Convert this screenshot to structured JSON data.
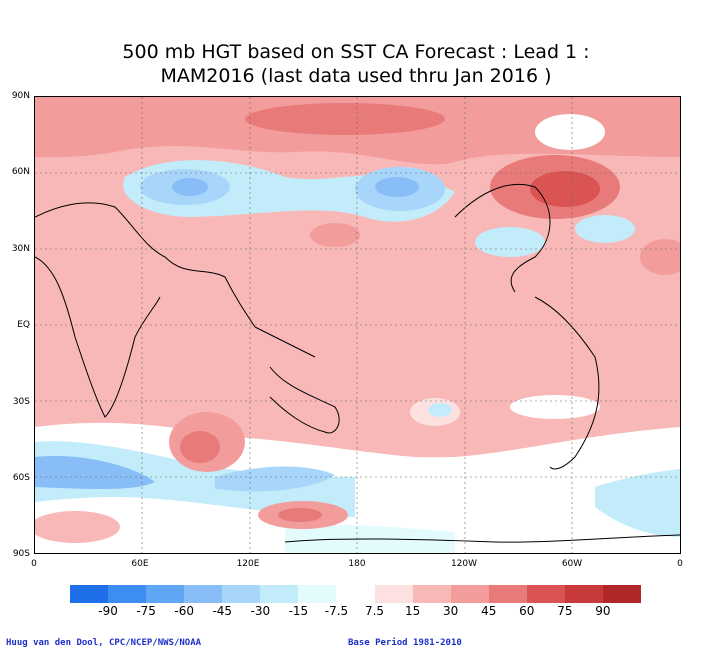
{
  "title": {
    "line1": "500 mb HGT based on SST CA Forecast : Lead 1 :",
    "line2": "MAM2016 (last data used thru Jan 2016 )"
  },
  "lat_labels": [
    "90N",
    "60N",
    "30N",
    "EQ",
    "30S",
    "60S",
    "90S"
  ],
  "lon_labels": [
    "0",
    "60E",
    "120E",
    "180",
    "120W",
    "60W",
    "0"
  ],
  "legend": {
    "levels": [
      "-90",
      "-75",
      "-60",
      "-45",
      "-30",
      "-15",
      "-7.5",
      "7.5",
      "15",
      "30",
      "45",
      "60",
      "75",
      "90"
    ],
    "colors": [
      "#1f6fe8",
      "#3d8ef0",
      "#5fa6f4",
      "#88bdf7",
      "#a8d6fa",
      "#c2ecfa",
      "#e3fbfd",
      "#ffffff",
      "#fde0e0",
      "#f9b8b8",
      "#f39c9c",
      "#e87a7a",
      "#da5454",
      "#c83a3a",
      "#b12828"
    ]
  },
  "footer": {
    "credit": "Huug van den Dool, CPC/NCEP/NWS/NOAA",
    "base_period": "Base Period 1981-2010"
  }
}
